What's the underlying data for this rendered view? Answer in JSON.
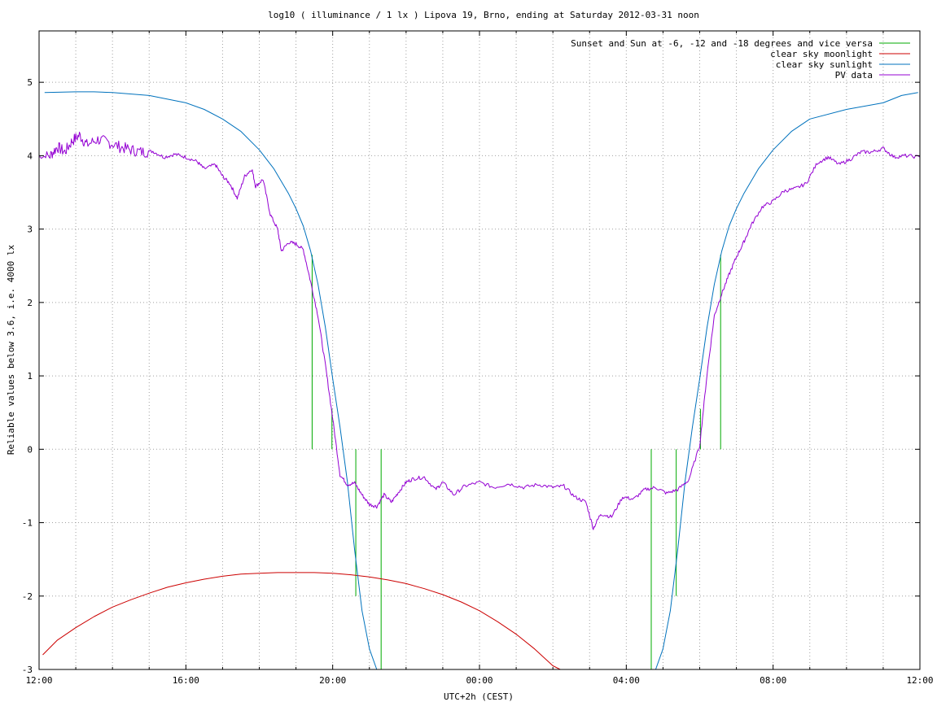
{
  "chart_data": {
    "type": "line",
    "title": "log10 ( illuminance / 1 lx ) Lipova 19, Brno, ending at Saturday 2012-03-31 noon",
    "xlabel": "UTC+2h (CEST)",
    "ylabel": "Reliable values below 3.6, i.e. 4000 lx",
    "x_unit": "hours",
    "xlim": [
      12,
      36
    ],
    "ylim": [
      -3,
      5.7
    ],
    "x_ticks": [
      12,
      16,
      20,
      24,
      28,
      32,
      36
    ],
    "x_tick_labels": [
      "12:00",
      "16:00",
      "20:00",
      "00:00",
      "04:00",
      "08:00",
      "12:00"
    ],
    "y_ticks": [
      -3,
      -2,
      -1,
      0,
      1,
      2,
      3,
      4,
      5
    ],
    "y_tick_labels": [
      "-3",
      "-2",
      "-1",
      "0",
      "1",
      "2",
      "3",
      "4",
      "5"
    ],
    "grid": true,
    "legend_position": "top-right",
    "series": [
      {
        "name": "Sunset and Sun at -6, -12 and -18 degrees and vice versa",
        "color": "#00aa00",
        "kind": "vertical-markers",
        "markers": [
          {
            "x": 19.44,
            "y0": 0,
            "y1": 2.65
          },
          {
            "x": 19.98,
            "y0": 0,
            "y1": 0.55
          },
          {
            "x": 20.63,
            "y0": -2.0,
            "y1": 0
          },
          {
            "x": 21.32,
            "y0": -3.0,
            "y1": 0
          },
          {
            "x": 28.68,
            "y0": -3.0,
            "y1": 0
          },
          {
            "x": 29.36,
            "y0": -2.0,
            "y1": 0
          },
          {
            "x": 30.02,
            "y0": 0,
            "y1": 0.55
          },
          {
            "x": 30.57,
            "y0": 0,
            "y1": 2.65
          }
        ]
      },
      {
        "name": "clear sky moonlight",
        "color": "#cc0000",
        "x": [
          12.1,
          12.5,
          13.0,
          13.5,
          14.0,
          14.5,
          15.0,
          15.5,
          16.0,
          16.5,
          17.0,
          17.5,
          18.0,
          18.5,
          19.0,
          19.5,
          20.0,
          20.5,
          21.0,
          21.5,
          22.0,
          22.5,
          23.0,
          23.5,
          24.0,
          24.5,
          25.0,
          25.5,
          26.0,
          26.2
        ],
        "values": [
          -2.8,
          -2.6,
          -2.43,
          -2.28,
          -2.15,
          -2.05,
          -1.96,
          -1.88,
          -1.82,
          -1.77,
          -1.73,
          -1.7,
          -1.69,
          -1.68,
          -1.68,
          -1.68,
          -1.69,
          -1.71,
          -1.74,
          -1.78,
          -1.83,
          -1.9,
          -1.98,
          -2.08,
          -2.2,
          -2.35,
          -2.52,
          -2.72,
          -2.95,
          -3.0
        ]
      },
      {
        "name": "clear sky sunlight",
        "color": "#0072bd",
        "x": [
          12.15,
          13.0,
          13.5,
          14.0,
          15.0,
          16.0,
          16.5,
          17.0,
          17.5,
          18.0,
          18.4,
          18.8,
          19.0,
          19.2,
          19.4,
          19.6,
          19.8,
          20.0,
          20.2,
          20.4,
          20.6,
          20.8,
          21.0,
          21.2,
          28.8,
          29.0,
          29.2,
          29.4,
          29.6,
          29.8,
          30.0,
          30.2,
          30.4,
          30.6,
          30.8,
          31.0,
          31.2,
          31.6,
          32.0,
          32.5,
          33.0,
          34.0,
          35.0,
          35.5,
          35.95
        ],
        "values": [
          4.86,
          4.87,
          4.87,
          4.86,
          4.82,
          4.72,
          4.63,
          4.5,
          4.33,
          4.08,
          3.82,
          3.48,
          3.28,
          3.04,
          2.7,
          2.25,
          1.66,
          0.96,
          0.3,
          -0.44,
          -1.38,
          -2.2,
          -2.72,
          -3.0,
          -3.0,
          -2.72,
          -2.2,
          -1.38,
          -0.44,
          0.3,
          0.96,
          1.66,
          2.25,
          2.7,
          3.04,
          3.28,
          3.48,
          3.82,
          4.08,
          4.33,
          4.5,
          4.63,
          4.72,
          4.82,
          4.86
        ]
      },
      {
        "name": "PV data",
        "color": "#9400d3",
        "x": [
          12.0,
          12.3,
          12.5,
          12.7,
          12.9,
          13.1,
          13.3,
          13.6,
          13.9,
          14.2,
          14.5,
          14.8,
          15.1,
          15.4,
          15.7,
          16.0,
          16.3,
          16.5,
          16.8,
          17.0,
          17.2,
          17.4,
          17.6,
          17.8,
          17.9,
          18.1,
          18.3,
          18.5,
          18.6,
          18.8,
          19.0,
          19.2,
          19.4,
          19.6,
          19.8,
          20.0,
          20.2,
          20.4,
          20.6,
          20.8,
          21.0,
          21.2,
          21.4,
          21.6,
          21.8,
          22.0,
          22.2,
          22.5,
          22.8,
          23.0,
          23.3,
          23.6,
          24.0,
          24.4,
          24.8,
          25.2,
          25.6,
          26.0,
          26.3,
          26.6,
          26.9,
          27.1,
          27.3,
          27.6,
          27.9,
          28.2,
          28.5,
          28.8,
          29.1,
          29.4,
          29.7,
          30.0,
          30.2,
          30.4,
          30.6,
          30.8,
          31.0,
          31.2,
          31.4,
          31.7,
          32.0,
          32.3,
          32.6,
          32.9,
          33.2,
          33.5,
          33.8,
          34.1,
          34.4,
          34.7,
          35.0,
          35.3,
          35.6,
          36.0
        ],
        "values": [
          3.98,
          4.0,
          4.12,
          4.05,
          4.2,
          4.28,
          4.15,
          4.22,
          4.18,
          4.12,
          4.08,
          4.05,
          4.06,
          3.98,
          4.02,
          3.98,
          3.92,
          3.82,
          3.88,
          3.72,
          3.62,
          3.42,
          3.72,
          3.82,
          3.58,
          3.68,
          3.2,
          3.0,
          2.7,
          2.82,
          2.8,
          2.72,
          2.28,
          1.82,
          1.15,
          0.42,
          -0.35,
          -0.48,
          -0.46,
          -0.62,
          -0.75,
          -0.78,
          -0.62,
          -0.72,
          -0.58,
          -0.45,
          -0.4,
          -0.38,
          -0.55,
          -0.45,
          -0.62,
          -0.5,
          -0.45,
          -0.52,
          -0.47,
          -0.52,
          -0.48,
          -0.52,
          -0.5,
          -0.65,
          -0.72,
          -1.08,
          -0.88,
          -0.92,
          -0.65,
          -0.68,
          -0.55,
          -0.52,
          -0.6,
          -0.55,
          -0.42,
          0.05,
          1.02,
          1.82,
          2.12,
          2.38,
          2.62,
          2.82,
          3.05,
          3.3,
          3.38,
          3.52,
          3.55,
          3.62,
          3.9,
          3.98,
          3.88,
          3.95,
          4.05,
          4.05,
          4.1,
          3.98,
          4.0,
          3.98
        ]
      }
    ]
  }
}
